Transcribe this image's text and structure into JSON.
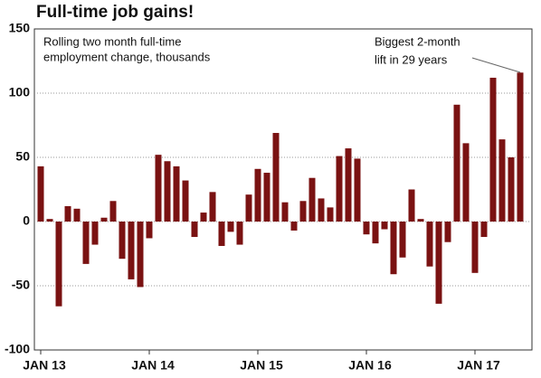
{
  "chart_data": {
    "type": "bar",
    "title": "Full-time job gains!",
    "subtitle": [
      "Rolling two month full-time",
      "employment change, thousands"
    ],
    "annotation": [
      "Biggest 2-month",
      "lift in 29 years"
    ],
    "categories": [
      "JAN 13",
      null,
      null,
      null,
      null,
      null,
      null,
      null,
      null,
      null,
      null,
      null,
      "JAN 14",
      null,
      null,
      null,
      null,
      null,
      null,
      null,
      null,
      null,
      null,
      null,
      "JAN 15",
      null,
      null,
      null,
      null,
      null,
      null,
      null,
      null,
      null,
      null,
      null,
      "JAN 16",
      null,
      null,
      null,
      null,
      null,
      null,
      null,
      null,
      null,
      null,
      null,
      "JAN 17",
      null,
      null,
      null,
      null,
      null
    ],
    "values": [
      43,
      2,
      -66,
      12,
      10,
      -33,
      -18,
      3,
      16,
      -29,
      -45,
      -51,
      -13,
      52,
      47,
      43,
      32,
      -12,
      7,
      23,
      -19,
      -8,
      -18,
      21,
      41,
      38,
      69,
      15,
      -7,
      16,
      34,
      18,
      11,
      51,
      57,
      49,
      -10,
      -17,
      -6,
      -41,
      -28,
      25,
      2,
      -35,
      -64,
      -16,
      91,
      61,
      -40,
      -12,
      112,
      64,
      50,
      116
    ],
    "color": "#7a1212",
    "ylim": [
      -100,
      150
    ],
    "yticks": [
      -100,
      -50,
      0,
      50,
      100,
      150
    ],
    "grid": true
  }
}
